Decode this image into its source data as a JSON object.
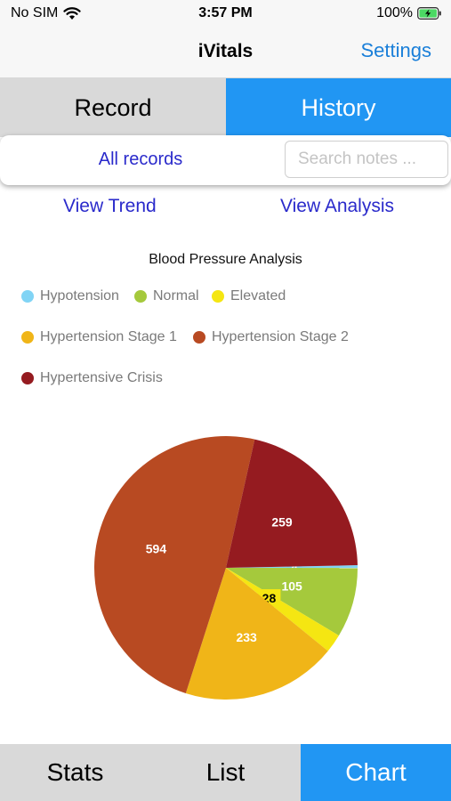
{
  "status_bar": {
    "carrier": "No SIM",
    "time": "3:57 PM",
    "battery": "100%",
    "wifi_icon": "wifi-icon",
    "battery_icon": "battery-charging-icon"
  },
  "nav": {
    "title": "iVitals",
    "settings_label": "Settings"
  },
  "segments": {
    "record": "Record",
    "history": "History",
    "selected": "History"
  },
  "filter": {
    "all_records": "All records",
    "search_placeholder": "Search notes ..."
  },
  "links": {
    "view_trend": "View Trend",
    "view_analysis": "View Analysis"
  },
  "legend": [
    {
      "label": "Hypotension",
      "color": "#81d4f5"
    },
    {
      "label": "Normal",
      "color": "#a5c93c"
    },
    {
      "label": "Elevated",
      "color": "#f5e612"
    },
    {
      "label": "Hypertension Stage 1",
      "color": "#f0b518"
    },
    {
      "label": "Hypertension Stage 2",
      "color": "#b84a22"
    },
    {
      "label": "Hypertensive Crisis",
      "color": "#951b20"
    }
  ],
  "chart_data": {
    "type": "pie",
    "title": "Blood Pressure Analysis",
    "legend_position": "top",
    "slices": [
      {
        "label": "Hypotension",
        "value": 4,
        "color": "#81d4f5"
      },
      {
        "label": "Normal",
        "value": 105,
        "color": "#a5c93c"
      },
      {
        "label": "Elevated",
        "value": 28,
        "color": "#f5e612"
      },
      {
        "label": "Hypertension Stage 1",
        "value": 233,
        "color": "#f0b518"
      },
      {
        "label": "Hypertension Stage 2",
        "value": 594,
        "color": "#b84a22"
      },
      {
        "label": "Hypertensive Crisis",
        "value": 259,
        "color": "#951b20"
      }
    ]
  },
  "tabs": {
    "stats": "Stats",
    "list": "List",
    "chart": "Chart",
    "selected": "Chart"
  }
}
